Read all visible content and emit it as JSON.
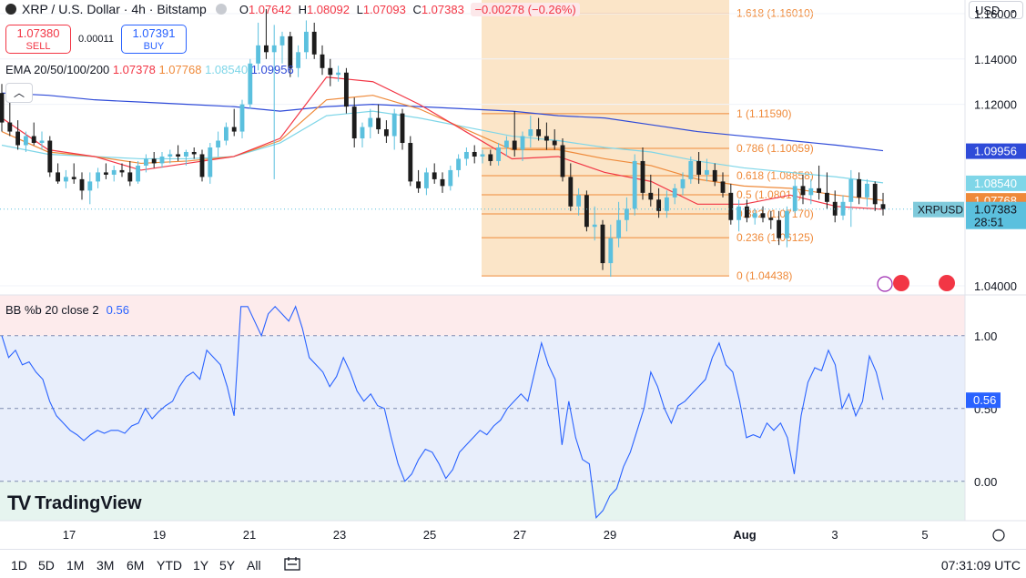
{
  "header": {
    "symbol": "XRP / U.S. Dollar · 4h · Bitstamp",
    "o_label": "O",
    "o": "1.07642",
    "h_label": "H",
    "h": "1.08092",
    "l_label": "L",
    "l": "1.07093",
    "c_label": "C",
    "c": "1.07383",
    "change": "−0.00278 (−0.26%)"
  },
  "trade": {
    "sell_price": "1.07380",
    "sell_label": "SELL",
    "spread": "0.00011",
    "buy_price": "1.07391",
    "buy_label": "BUY"
  },
  "ema": {
    "label": "EMA 20/50/100/200",
    "e20": "1.07378",
    "e50": "1.07768",
    "e100": "1.08540",
    "e200": "1.09956"
  },
  "collapse_icon": "chevron-up-icon",
  "currency": "USD",
  "bb": {
    "label": "BB %b 20 close 2",
    "value": "0.56"
  },
  "logo": "TradingView",
  "timeframes": [
    "1D",
    "5D",
    "1M",
    "3M",
    "6M",
    "YTD",
    "1Y",
    "5Y",
    "All"
  ],
  "clock": "07:31:09 UTC",
  "colors": {
    "up": "#5bc0de",
    "down": "#1c1c1c",
    "ema20": "#f23645",
    "ema50": "#ef8a3a",
    "ema100": "#7fd6e8",
    "ema200": "#2f4bd8",
    "fib_zone": "#fbe5c8",
    "bb_line": "#2962ff"
  },
  "chart_data": {
    "type": "candlestick",
    "price_axis": {
      "ticks": [
        "1.16000",
        "1.14000",
        "1.12000",
        "1.04000"
      ],
      "ylim": [
        1.036,
        1.166
      ]
    },
    "x_ticks": [
      "17",
      "19",
      "21",
      "23",
      "25",
      "27",
      "29",
      "Aug",
      "3",
      "5"
    ],
    "candles": [
      [
        1.125,
        1.129,
        1.108,
        1.112
      ],
      [
        1.112,
        1.122,
        1.106,
        1.108
      ],
      [
        1.108,
        1.113,
        1.1,
        1.102
      ],
      [
        1.102,
        1.108,
        1.099,
        1.106
      ],
      [
        1.106,
        1.112,
        1.102,
        1.103
      ],
      [
        1.103,
        1.108,
        1.1,
        1.104
      ],
      [
        1.104,
        1.106,
        1.088,
        1.09
      ],
      [
        1.09,
        1.094,
        1.085,
        1.086
      ],
      [
        1.086,
        1.091,
        1.083,
        1.088
      ],
      [
        1.088,
        1.094,
        1.085,
        1.087
      ],
      [
        1.087,
        1.09,
        1.078,
        1.082
      ],
      [
        1.082,
        1.09,
        1.076,
        1.086
      ],
      [
        1.086,
        1.092,
        1.083,
        1.09
      ],
      [
        1.09,
        1.094,
        1.087,
        1.089
      ],
      [
        1.089,
        1.093,
        1.086,
        1.091
      ],
      [
        1.091,
        1.094,
        1.088,
        1.09
      ],
      [
        1.09,
        1.095,
        1.084,
        1.086
      ],
      [
        1.086,
        1.095,
        1.085,
        1.093
      ],
      [
        1.093,
        1.098,
        1.09,
        1.096
      ],
      [
        1.096,
        1.099,
        1.092,
        1.094
      ],
      [
        1.094,
        1.099,
        1.092,
        1.097
      ],
      [
        1.097,
        1.1,
        1.094,
        1.098
      ],
      [
        1.098,
        1.102,
        1.095,
        1.097
      ],
      [
        1.097,
        1.1,
        1.093,
        1.099
      ],
      [
        1.099,
        1.101,
        1.096,
        1.098
      ],
      [
        1.098,
        1.1,
        1.086,
        1.088
      ],
      [
        1.088,
        1.103,
        1.085,
        1.101
      ],
      [
        1.101,
        1.108,
        1.097,
        1.104
      ],
      [
        1.104,
        1.112,
        1.102,
        1.11
      ],
      [
        1.11,
        1.118,
        1.106,
        1.108
      ],
      [
        1.108,
        1.122,
        1.105,
        1.12
      ],
      [
        1.12,
        1.14,
        1.118,
        1.138
      ],
      [
        1.138,
        1.156,
        1.135,
        1.146
      ],
      [
        1.146,
        1.162,
        1.14,
        1.143
      ],
      [
        1.143,
        1.155,
        1.087,
        1.146
      ],
      [
        1.146,
        1.152,
        1.138,
        1.15
      ],
      [
        1.15,
        1.152,
        1.132,
        1.136
      ],
      [
        1.136,
        1.146,
        1.132,
        1.143
      ],
      [
        1.143,
        1.157,
        1.14,
        1.152
      ],
      [
        1.152,
        1.156,
        1.14,
        1.142
      ],
      [
        1.142,
        1.146,
        1.133,
        1.136
      ],
      [
        1.136,
        1.14,
        1.128,
        1.133
      ],
      [
        1.133,
        1.137,
        1.13,
        1.134
      ],
      [
        1.134,
        1.136,
        1.116,
        1.119
      ],
      [
        1.119,
        1.123,
        1.101,
        1.105
      ],
      [
        1.105,
        1.112,
        1.101,
        1.11
      ],
      [
        1.11,
        1.118,
        1.105,
        1.114
      ],
      [
        1.114,
        1.12,
        1.107,
        1.109
      ],
      [
        1.109,
        1.113,
        1.103,
        1.106
      ],
      [
        1.106,
        1.118,
        1.1,
        1.116
      ],
      [
        1.116,
        1.118,
        1.1,
        1.103
      ],
      [
        1.103,
        1.106,
        1.084,
        1.086
      ],
      [
        1.086,
        1.091,
        1.081,
        1.083
      ],
      [
        1.083,
        1.092,
        1.08,
        1.09
      ],
      [
        1.09,
        1.094,
        1.085,
        1.087
      ],
      [
        1.087,
        1.09,
        1.081,
        1.084
      ],
      [
        1.084,
        1.093,
        1.082,
        1.091
      ],
      [
        1.091,
        1.098,
        1.088,
        1.096
      ],
      [
        1.096,
        1.101,
        1.093,
        1.099
      ],
      [
        1.099,
        1.102,
        1.094,
        1.097
      ],
      [
        1.097,
        1.1,
        1.094,
        1.098
      ],
      [
        1.098,
        1.1,
        1.093,
        1.095
      ],
      [
        1.095,
        1.103,
        1.093,
        1.101
      ],
      [
        1.101,
        1.106,
        1.097,
        1.104
      ],
      [
        1.104,
        1.117,
        1.097,
        1.1
      ],
      [
        1.1,
        1.108,
        1.095,
        1.106
      ],
      [
        1.106,
        1.115,
        1.101,
        1.109
      ],
      [
        1.109,
        1.114,
        1.104,
        1.106
      ],
      [
        1.106,
        1.112,
        1.1,
        1.104
      ],
      [
        1.104,
        1.109,
        1.1,
        1.102
      ],
      [
        1.102,
        1.105,
        1.086,
        1.088
      ],
      [
        1.088,
        1.094,
        1.073,
        1.075
      ],
      [
        1.075,
        1.083,
        1.071,
        1.08
      ],
      [
        1.08,
        1.082,
        1.064,
        1.066
      ],
      [
        1.066,
        1.075,
        1.06,
        1.067
      ],
      [
        1.067,
        1.069,
        1.047,
        1.05
      ],
      [
        1.05,
        1.067,
        1.044,
        1.061
      ],
      [
        1.061,
        1.077,
        1.057,
        1.069
      ],
      [
        1.069,
        1.079,
        1.064,
        1.074
      ],
      [
        1.074,
        1.098,
        1.071,
        1.095
      ],
      [
        1.095,
        1.101,
        1.078,
        1.081
      ],
      [
        1.081,
        1.089,
        1.075,
        1.078
      ],
      [
        1.078,
        1.083,
        1.07,
        1.073
      ],
      [
        1.073,
        1.082,
        1.07,
        1.079
      ],
      [
        1.079,
        1.085,
        1.076,
        1.083
      ],
      [
        1.083,
        1.09,
        1.08,
        1.087
      ],
      [
        1.087,
        1.097,
        1.085,
        1.095
      ],
      [
        1.095,
        1.099,
        1.085,
        1.089
      ],
      [
        1.089,
        1.096,
        1.086,
        1.091
      ],
      [
        1.091,
        1.094,
        1.084,
        1.086
      ],
      [
        1.086,
        1.09,
        1.079,
        1.081
      ],
      [
        1.081,
        1.085,
        1.067,
        1.069
      ],
      [
        1.069,
        1.078,
        1.064,
        1.075
      ],
      [
        1.075,
        1.078,
        1.068,
        1.07
      ],
      [
        1.07,
        1.074,
        1.067,
        1.072
      ],
      [
        1.072,
        1.075,
        1.068,
        1.07
      ],
      [
        1.07,
        1.073,
        1.065,
        1.069
      ],
      [
        1.069,
        1.073,
        1.058,
        1.061
      ],
      [
        1.061,
        1.075,
        1.057,
        1.073
      ],
      [
        1.073,
        1.087,
        1.072,
        1.084
      ],
      [
        1.084,
        1.089,
        1.076,
        1.08
      ],
      [
        1.08,
        1.087,
        1.076,
        1.083
      ],
      [
        1.083,
        1.093,
        1.078,
        1.081
      ],
      [
        1.081,
        1.09,
        1.074,
        1.077
      ],
      [
        1.077,
        1.082,
        1.068,
        1.071
      ],
      [
        1.071,
        1.08,
        1.069,
        1.077
      ],
      [
        1.077,
        1.091,
        1.066,
        1.087
      ],
      [
        1.087,
        1.09,
        1.076,
        1.079
      ],
      [
        1.079,
        1.087,
        1.075,
        1.085
      ],
      [
        1.085,
        1.086,
        1.073,
        1.076
      ],
      [
        1.076,
        1.081,
        1.071,
        1.07383
      ]
    ],
    "ema": {
      "ema20": [
        1.114,
        1.1,
        1.097,
        1.091,
        1.094,
        1.097,
        1.105,
        1.132,
        1.13,
        1.12,
        1.108,
        1.096,
        1.097,
        1.09,
        1.086,
        1.076,
        1.076,
        1.08,
        1.075,
        1.07378
      ],
      "ema50": [
        1.108,
        1.099,
        1.097,
        1.094,
        1.095,
        1.097,
        1.104,
        1.122,
        1.124,
        1.118,
        1.109,
        1.1,
        1.1,
        1.096,
        1.093,
        1.087,
        1.084,
        1.083,
        1.08,
        1.07768
      ],
      "ema100": [
        1.102,
        1.098,
        1.097,
        1.096,
        1.096,
        1.097,
        1.103,
        1.115,
        1.117,
        1.114,
        1.11,
        1.106,
        1.104,
        1.101,
        1.099,
        1.095,
        1.092,
        1.09,
        1.088,
        1.0854
      ],
      "ema200": [
        1.125,
        1.124,
        1.122,
        1.121,
        1.12,
        1.119,
        1.117,
        1.119,
        1.12,
        1.119,
        1.118,
        1.117,
        1.115,
        1.114,
        1.111,
        1.108,
        1.106,
        1.104,
        1.102,
        1.09956
      ]
    },
    "fib": [
      {
        "label": "1.618 (1.16010)",
        "value": 1.1601
      },
      {
        "label": "1 (1.11590)",
        "value": 1.1159
      },
      {
        "label": "0.786 (1.10059)",
        "value": 1.10059
      },
      {
        "label": "0.618 (1.08858)",
        "value": 1.08858
      },
      {
        "label": "0.5 (1.08014)",
        "value": 1.08014
      },
      {
        "label": "0.382 (1.07170)",
        "value": 1.0717
      },
      {
        "label": "0.236 (1.06125)",
        "value": 1.06125
      },
      {
        "label": "0 (1.04438)",
        "value": 1.04438
      }
    ],
    "price_labels": [
      {
        "text": "1.09956",
        "value": 1.09956,
        "color": "#2f4bd8"
      },
      {
        "text": "1.08540",
        "value": 1.0854,
        "color": "#7fd6e8"
      },
      {
        "text": "1.07768",
        "value": 1.07768,
        "color": "#ef8a3a"
      },
      {
        "text": "1.07378",
        "value": 1.07378,
        "color": "#f23645"
      }
    ],
    "current": {
      "symbol": "XRPUSD",
      "price": "1.07383",
      "countdown": "28:51",
      "value": 1.07383
    },
    "bb_axis": {
      "ticks": [
        "1.00",
        "0.50",
        "0.00"
      ],
      "ylim": [
        -0.27,
        1.28
      ]
    },
    "bb_values": [
      1.0,
      0.85,
      0.9,
      0.8,
      0.82,
      0.75,
      0.7,
      0.55,
      0.45,
      0.4,
      0.35,
      0.32,
      0.28,
      0.32,
      0.35,
      0.33,
      0.35,
      0.35,
      0.33,
      0.38,
      0.4,
      0.5,
      0.43,
      0.48,
      0.52,
      0.55,
      0.65,
      0.72,
      0.75,
      0.7,
      0.9,
      0.85,
      0.8,
      0.65,
      0.45,
      1.2,
      1.2,
      1.1,
      1.0,
      1.15,
      1.2,
      1.15,
      1.1,
      1.2,
      1.05,
      0.85,
      0.8,
      0.75,
      0.65,
      0.72,
      0.85,
      0.75,
      0.62,
      0.55,
      0.6,
      0.52,
      0.5,
      0.3,
      0.12,
      0.0,
      0.05,
      0.15,
      0.22,
      0.2,
      0.12,
      0.02,
      0.08,
      0.2,
      0.25,
      0.3,
      0.35,
      0.32,
      0.38,
      0.42,
      0.5,
      0.55,
      0.6,
      0.55,
      0.75,
      0.95,
      0.8,
      0.7,
      0.25,
      0.55,
      0.3,
      0.15,
      0.12,
      -0.25,
      -0.2,
      -0.1,
      -0.05,
      0.1,
      0.2,
      0.35,
      0.5,
      0.75,
      0.65,
      0.5,
      0.4,
      0.52,
      0.55,
      0.6,
      0.65,
      0.7,
      0.85,
      0.95,
      0.8,
      0.75,
      0.55,
      0.3,
      0.32,
      0.3,
      0.4,
      0.35,
      0.4,
      0.3,
      0.05,
      0.45,
      0.68,
      0.78,
      0.76,
      0.9,
      0.8,
      0.5,
      0.6,
      0.45,
      0.55,
      0.86,
      0.75,
      0.56
    ]
  }
}
